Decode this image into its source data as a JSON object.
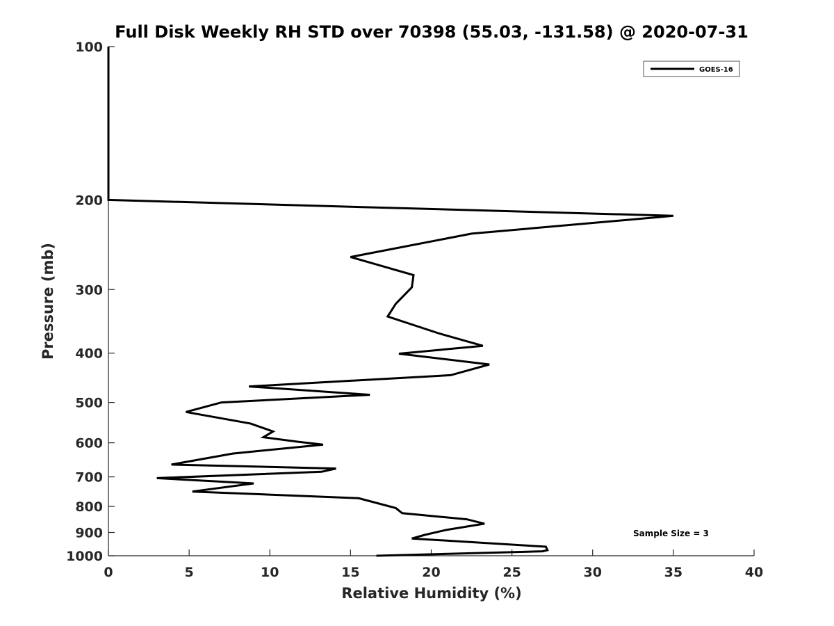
{
  "chart_data": {
    "type": "line",
    "title": "Full Disk Weekly RH STD over 70398 (55.03, -131.58) @ 2020-07-31",
    "xlabel": "Relative Humidity (%)",
    "ylabel": "Pressure (mb)",
    "xlim": [
      0,
      40
    ],
    "ylim": [
      1000,
      100
    ],
    "yscale": "log",
    "grid": false,
    "legend_position": "top-right",
    "x_ticks": [
      0,
      5,
      10,
      15,
      20,
      25,
      30,
      35,
      40
    ],
    "x_tick_labels": [
      "0",
      "5",
      "10",
      "15",
      "20",
      "25",
      "30",
      "35",
      "40"
    ],
    "y_ticks": [
      100,
      200,
      300,
      400,
      500,
      600,
      700,
      800,
      900,
      1000
    ],
    "y_tick_labels": [
      "100",
      "200",
      "300",
      "400",
      "500",
      "600",
      "700",
      "800",
      "900",
      "1000"
    ],
    "annotation": "Sample Size = 3",
    "series": [
      {
        "name": "GOES-16",
        "color": "#000000",
        "points": [
          [
            0,
            100
          ],
          [
            0,
            200
          ],
          [
            35.0,
            215
          ],
          [
            22.5,
            233
          ],
          [
            15.0,
            259
          ],
          [
            18.9,
            281
          ],
          [
            18.8,
            297
          ],
          [
            17.8,
            320
          ],
          [
            17.3,
            339
          ],
          [
            20.5,
            366
          ],
          [
            23.2,
            387
          ],
          [
            18.0,
            401
          ],
          [
            23.6,
            421
          ],
          [
            21.2,
            442
          ],
          [
            8.7,
            465
          ],
          [
            16.2,
            483
          ],
          [
            7.0,
            500
          ],
          [
            4.8,
            522
          ],
          [
            8.8,
            550
          ],
          [
            10.2,
            570
          ],
          [
            9.6,
            585
          ],
          [
            11.7,
            597
          ],
          [
            13.3,
            605
          ],
          [
            7.7,
            630
          ],
          [
            3.9,
            662
          ],
          [
            14.1,
            674
          ],
          [
            13.2,
            684
          ],
          [
            3.0,
            704
          ],
          [
            9.0,
            721
          ],
          [
            5.2,
            748
          ],
          [
            15.5,
            771
          ],
          [
            17.8,
            806
          ],
          [
            18.2,
            825
          ],
          [
            22.2,
            848
          ],
          [
            23.3,
            865
          ],
          [
            20.9,
            890
          ],
          [
            19.6,
            910
          ],
          [
            18.8,
            925
          ],
          [
            27.1,
            960
          ],
          [
            27.2,
            975
          ],
          [
            26.9,
            980
          ],
          [
            16.6,
            1000
          ]
        ]
      }
    ]
  }
}
